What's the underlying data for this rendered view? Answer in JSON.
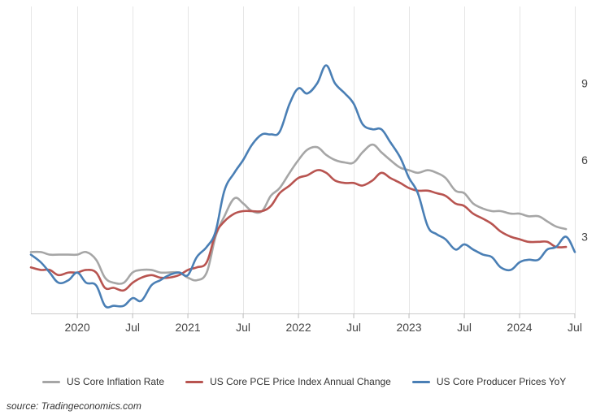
{
  "chart_data": {
    "type": "line",
    "title": "",
    "xlabel": "",
    "ylabel": "",
    "x_tick_labels": [
      "2020",
      "Jul",
      "2021",
      "Jul",
      "2022",
      "Jul",
      "2023",
      "Jul",
      "2024",
      "Jul"
    ],
    "x_tick_values": [
      2020.0,
      2020.5,
      2021.0,
      2021.5,
      2022.0,
      2022.5,
      2023.0,
      2023.5,
      2024.0,
      2024.5
    ],
    "xlim": [
      2019.58,
      2024.5
    ],
    "y_tick_labels": [
      "3",
      "6",
      "9"
    ],
    "y_tick_values": [
      3,
      6,
      9
    ],
    "ylim": [
      0,
      12
    ],
    "y_axis_position": "right",
    "grid": "vertical",
    "legend_position": "bottom",
    "series": [
      {
        "name": "US Core Inflation Rate",
        "color": "#a6a6a6",
        "points": [
          [
            2019.58,
            2.4
          ],
          [
            2019.67,
            2.4
          ],
          [
            2019.75,
            2.3
          ],
          [
            2019.83,
            2.3
          ],
          [
            2019.92,
            2.3
          ],
          [
            2020.0,
            2.3
          ],
          [
            2020.08,
            2.4
          ],
          [
            2020.17,
            2.1
          ],
          [
            2020.25,
            1.4
          ],
          [
            2020.33,
            1.2
          ],
          [
            2020.42,
            1.2
          ],
          [
            2020.5,
            1.6
          ],
          [
            2020.58,
            1.7
          ],
          [
            2020.67,
            1.7
          ],
          [
            2020.75,
            1.6
          ],
          [
            2020.83,
            1.6
          ],
          [
            2020.92,
            1.6
          ],
          [
            2021.0,
            1.4
          ],
          [
            2021.08,
            1.3
          ],
          [
            2021.17,
            1.6
          ],
          [
            2021.25,
            3.0
          ],
          [
            2021.33,
            3.8
          ],
          [
            2021.42,
            4.5
          ],
          [
            2021.5,
            4.3
          ],
          [
            2021.58,
            4.0
          ],
          [
            2021.67,
            4.0
          ],
          [
            2021.75,
            4.6
          ],
          [
            2021.83,
            4.9
          ],
          [
            2021.92,
            5.5
          ],
          [
            2022.0,
            6.0
          ],
          [
            2022.08,
            6.4
          ],
          [
            2022.17,
            6.5
          ],
          [
            2022.25,
            6.2
          ],
          [
            2022.33,
            6.0
          ],
          [
            2022.42,
            5.9
          ],
          [
            2022.5,
            5.9
          ],
          [
            2022.58,
            6.3
          ],
          [
            2022.67,
            6.6
          ],
          [
            2022.75,
            6.3
          ],
          [
            2022.83,
            6.0
          ],
          [
            2022.92,
            5.7
          ],
          [
            2023.0,
            5.6
          ],
          [
            2023.08,
            5.5
          ],
          [
            2023.17,
            5.6
          ],
          [
            2023.25,
            5.5
          ],
          [
            2023.33,
            5.3
          ],
          [
            2023.42,
            4.8
          ],
          [
            2023.5,
            4.7
          ],
          [
            2023.58,
            4.3
          ],
          [
            2023.67,
            4.1
          ],
          [
            2023.75,
            4.0
          ],
          [
            2023.83,
            4.0
          ],
          [
            2023.92,
            3.9
          ],
          [
            2024.0,
            3.9
          ],
          [
            2024.08,
            3.8
          ],
          [
            2024.17,
            3.8
          ],
          [
            2024.25,
            3.6
          ],
          [
            2024.33,
            3.4
          ],
          [
            2024.42,
            3.3
          ]
        ]
      },
      {
        "name": "US Core PCE Price Index Annual Change",
        "color": "#b85450",
        "points": [
          [
            2019.58,
            1.8
          ],
          [
            2019.67,
            1.7
          ],
          [
            2019.75,
            1.7
          ],
          [
            2019.83,
            1.5
          ],
          [
            2019.92,
            1.6
          ],
          [
            2020.0,
            1.6
          ],
          [
            2020.08,
            1.7
          ],
          [
            2020.17,
            1.6
          ],
          [
            2020.25,
            1.0
          ],
          [
            2020.33,
            1.0
          ],
          [
            2020.42,
            0.9
          ],
          [
            2020.5,
            1.2
          ],
          [
            2020.58,
            1.4
          ],
          [
            2020.67,
            1.5
          ],
          [
            2020.75,
            1.4
          ],
          [
            2020.83,
            1.4
          ],
          [
            2020.92,
            1.5
          ],
          [
            2021.0,
            1.7
          ],
          [
            2021.08,
            1.8
          ],
          [
            2021.17,
            2.0
          ],
          [
            2021.25,
            3.1
          ],
          [
            2021.33,
            3.6
          ],
          [
            2021.42,
            3.9
          ],
          [
            2021.5,
            4.0
          ],
          [
            2021.58,
            4.0
          ],
          [
            2021.67,
            4.0
          ],
          [
            2021.75,
            4.2
          ],
          [
            2021.83,
            4.7
          ],
          [
            2021.92,
            5.0
          ],
          [
            2022.0,
            5.3
          ],
          [
            2022.08,
            5.4
          ],
          [
            2022.17,
            5.6
          ],
          [
            2022.25,
            5.5
          ],
          [
            2022.33,
            5.2
          ],
          [
            2022.42,
            5.1
          ],
          [
            2022.5,
            5.1
          ],
          [
            2022.58,
            5.0
          ],
          [
            2022.67,
            5.2
          ],
          [
            2022.75,
            5.5
          ],
          [
            2022.83,
            5.3
          ],
          [
            2022.92,
            5.1
          ],
          [
            2023.0,
            4.9
          ],
          [
            2023.08,
            4.8
          ],
          [
            2023.17,
            4.8
          ],
          [
            2023.25,
            4.7
          ],
          [
            2023.33,
            4.6
          ],
          [
            2023.42,
            4.3
          ],
          [
            2023.5,
            4.2
          ],
          [
            2023.58,
            3.9
          ],
          [
            2023.67,
            3.7
          ],
          [
            2023.75,
            3.5
          ],
          [
            2023.83,
            3.2
          ],
          [
            2023.92,
            3.0
          ],
          [
            2024.0,
            2.9
          ],
          [
            2024.08,
            2.8
          ],
          [
            2024.17,
            2.8
          ],
          [
            2024.25,
            2.8
          ],
          [
            2024.33,
            2.6
          ],
          [
            2024.42,
            2.6
          ]
        ]
      },
      {
        "name": "US Core Producer Prices YoY",
        "color": "#4a7fb5",
        "points": [
          [
            2019.58,
            2.3
          ],
          [
            2019.67,
            2.0
          ],
          [
            2019.75,
            1.6
          ],
          [
            2019.83,
            1.2
          ],
          [
            2019.92,
            1.3
          ],
          [
            2020.0,
            1.6
          ],
          [
            2020.08,
            1.2
          ],
          [
            2020.17,
            1.1
          ],
          [
            2020.25,
            0.3
          ],
          [
            2020.33,
            0.3
          ],
          [
            2020.42,
            0.3
          ],
          [
            2020.5,
            0.6
          ],
          [
            2020.58,
            0.5
          ],
          [
            2020.67,
            1.1
          ],
          [
            2020.75,
            1.3
          ],
          [
            2020.83,
            1.5
          ],
          [
            2020.92,
            1.6
          ],
          [
            2021.0,
            1.5
          ],
          [
            2021.08,
            2.2
          ],
          [
            2021.17,
            2.6
          ],
          [
            2021.25,
            3.2
          ],
          [
            2021.33,
            4.8
          ],
          [
            2021.42,
            5.5
          ],
          [
            2021.5,
            6.0
          ],
          [
            2021.58,
            6.6
          ],
          [
            2021.67,
            7.0
          ],
          [
            2021.75,
            7.0
          ],
          [
            2021.83,
            7.1
          ],
          [
            2021.92,
            8.2
          ],
          [
            2022.0,
            8.8
          ],
          [
            2022.08,
            8.6
          ],
          [
            2022.17,
            9.0
          ],
          [
            2022.25,
            9.7
          ],
          [
            2022.33,
            9.0
          ],
          [
            2022.42,
            8.6
          ],
          [
            2022.5,
            8.2
          ],
          [
            2022.58,
            7.4
          ],
          [
            2022.67,
            7.2
          ],
          [
            2022.75,
            7.2
          ],
          [
            2022.83,
            6.7
          ],
          [
            2022.92,
            6.1
          ],
          [
            2023.0,
            5.3
          ],
          [
            2023.08,
            4.7
          ],
          [
            2023.17,
            3.4
          ],
          [
            2023.25,
            3.1
          ],
          [
            2023.33,
            2.9
          ],
          [
            2023.42,
            2.5
          ],
          [
            2023.5,
            2.7
          ],
          [
            2023.58,
            2.5
          ],
          [
            2023.67,
            2.3
          ],
          [
            2023.75,
            2.2
          ],
          [
            2023.83,
            1.8
          ],
          [
            2023.92,
            1.7
          ],
          [
            2024.0,
            2.0
          ],
          [
            2024.08,
            2.1
          ],
          [
            2024.17,
            2.1
          ],
          [
            2024.25,
            2.5
          ],
          [
            2024.33,
            2.6
          ],
          [
            2024.42,
            3.0
          ],
          [
            2024.5,
            2.4
          ]
        ]
      }
    ]
  },
  "source_text": "source: Tradingeconomics.com"
}
